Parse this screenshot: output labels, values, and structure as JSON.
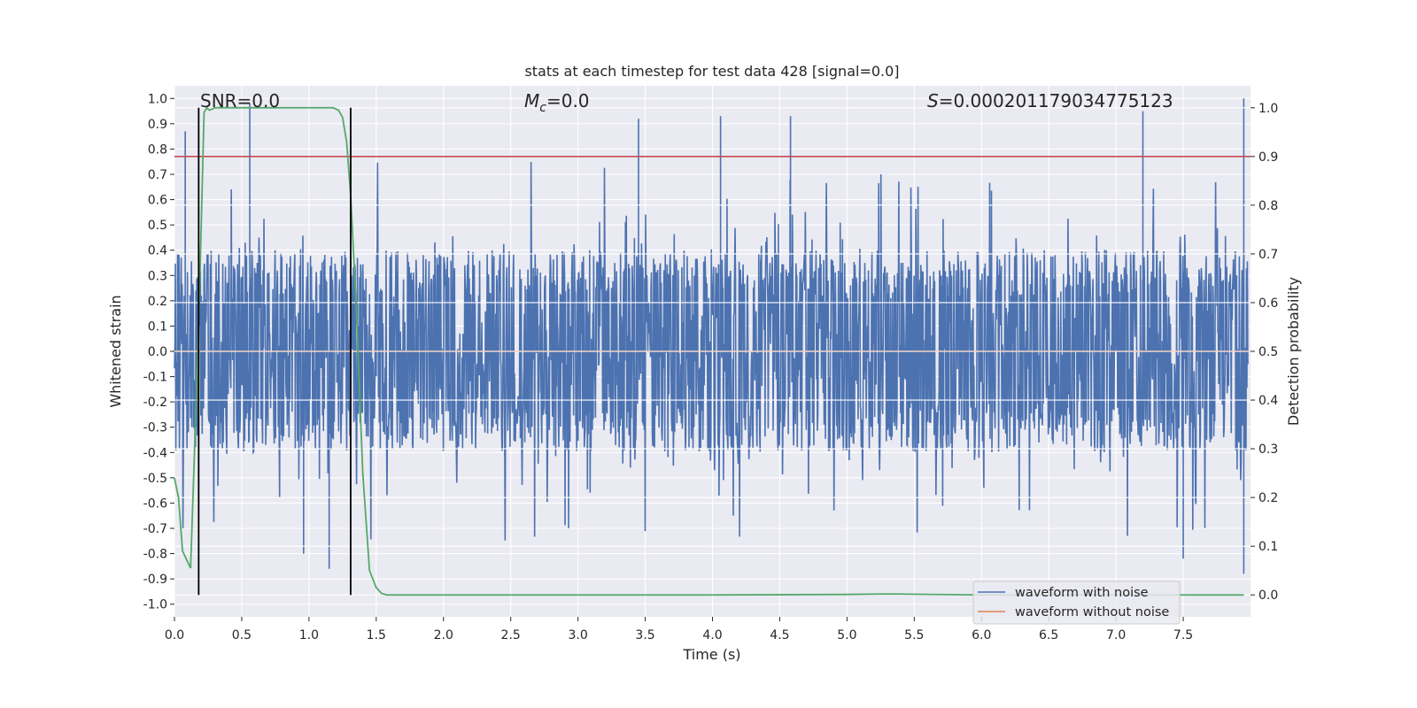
{
  "chart_data": {
    "type": "line",
    "title": "stats at each timestep for test data 428 [signal=0.0]",
    "xlabel": "Time (s)",
    "ylabel": "Whitened strain",
    "y2label": "Detection probability",
    "xlim": [
      0.0,
      8.0
    ],
    "ylim": [
      -1.05,
      1.05
    ],
    "y2lim": [
      -0.045,
      1.045
    ],
    "xticks": [
      "0.0",
      "0.5",
      "1.0",
      "1.5",
      "2.0",
      "2.5",
      "3.0",
      "3.5",
      "4.0",
      "4.5",
      "5.0",
      "5.5",
      "6.0",
      "6.5",
      "7.0",
      "7.5"
    ],
    "yticks": [
      "1.0",
      "0.9",
      "0.8",
      "0.7",
      "0.6",
      "0.5",
      "0.4",
      "0.3",
      "0.2",
      "0.1",
      "0.0",
      "-0.1",
      "-0.2",
      "-0.3",
      "-0.4",
      "-0.5",
      "-0.6",
      "-0.7",
      "-0.8",
      "-0.9",
      "-1.0"
    ],
    "y2ticks": [
      "1.0",
      "0.9",
      "0.8",
      "0.7",
      "0.6",
      "0.5",
      "0.4",
      "0.3",
      "0.2",
      "0.1",
      "0.0"
    ],
    "annotations": {
      "snr": "SNR=0.0",
      "mc_symbol": "M",
      "mc_sub": "c",
      "mc_value": "=0.0",
      "s_symbol": "S",
      "s_value": "=0.000201179034775123"
    },
    "legend": {
      "position": "lower-right",
      "entries": [
        {
          "label": "waveform with noise",
          "color": "#4c72b0"
        },
        {
          "label": "waveform without noise",
          "color": "#dd8452"
        }
      ]
    },
    "threshold_line": {
      "y2": 0.9,
      "color": "#c44e52"
    },
    "vertical_lines": {
      "x": [
        0.18,
        1.31
      ],
      "ymin": 0.0,
      "ymax": 1.0,
      "color": "#000000"
    },
    "series": [
      {
        "name": "waveform with noise",
        "axis": "left",
        "color": "#4c72b0",
        "kind": "noise",
        "typical_amplitude": 0.3,
        "peak_max": 1.0,
        "peak_min": -0.92
      },
      {
        "name": "waveform without noise",
        "axis": "left",
        "color": "#dd8452",
        "x": [
          0.0,
          8.0
        ],
        "y": [
          0.0,
          0.0
        ]
      },
      {
        "name": "detection probability",
        "axis": "right",
        "color": "#55a868",
        "x": [
          0.0,
          0.03,
          0.06,
          0.12,
          0.18,
          0.22,
          0.24,
          0.26,
          0.3,
          0.4,
          0.6,
          0.8,
          1.0,
          1.1,
          1.18,
          1.22,
          1.25,
          1.28,
          1.31,
          1.35,
          1.4,
          1.45,
          1.5,
          1.54,
          1.58,
          2.0,
          3.0,
          4.0,
          5.0,
          5.3,
          6.0,
          7.0,
          7.95
        ],
        "y": [
          0.24,
          0.2,
          0.09,
          0.055,
          0.55,
          0.99,
          1.0,
          0.995,
          1.0,
          1.0,
          1.0,
          1.0,
          1.0,
          1.0,
          1.0,
          0.995,
          0.98,
          0.93,
          0.82,
          0.6,
          0.25,
          0.05,
          0.015,
          0.003,
          0.0,
          0.0,
          0.0,
          0.0,
          0.001,
          0.002,
          0.0,
          0.0,
          0.0
        ]
      }
    ]
  }
}
